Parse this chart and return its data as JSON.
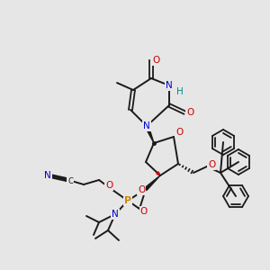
{
  "bg_color": "#e6e6e6",
  "bond_color": "#1a1a1a",
  "atom_colors": {
    "N": "#0000cc",
    "O": "#cc0000",
    "P": "#cc8800",
    "H": "#008888",
    "C": "#1a1a1a"
  },
  "figsize": [
    3.0,
    3.0
  ],
  "dpi": 100
}
